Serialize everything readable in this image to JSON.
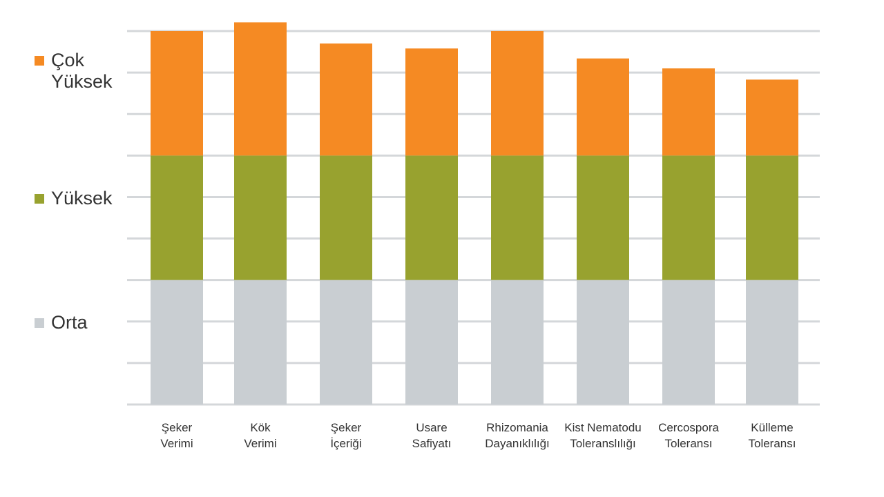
{
  "chart_data": {
    "type": "bar",
    "stacked": true,
    "categories": [
      "Şeker\nVerimi",
      "Kök\nVerimi",
      "Şeker\nİçeriği",
      "Usare\nSafiyatı",
      "Rhizomania\nDayanıklılığı",
      "Kist Nematodu\nToleranslılığı",
      "Cercospora\nToleransı",
      "Külleme\nToleransı"
    ],
    "series": [
      {
        "name": "Orta",
        "color": "#c9ced2",
        "values": [
          1,
          1,
          1,
          1,
          1,
          1,
          1,
          1
        ]
      },
      {
        "name": "Yüksek",
        "color": "#98a22f",
        "values": [
          1,
          1,
          1,
          1,
          1,
          1,
          1,
          1
        ]
      },
      {
        "name": "Çok Yüksek",
        "color": "#f58a23",
        "values": [
          1.0,
          1.07,
          0.9,
          0.86,
          1.0,
          0.78,
          0.7,
          0.61
        ]
      }
    ],
    "ylim": [
      0,
      3
    ],
    "yticks": [
      "Orta",
      "Yüksek",
      "Çok Yüksek"
    ],
    "title": "",
    "xlabel": "",
    "ylabel": "",
    "grid": true,
    "legend": "left"
  }
}
